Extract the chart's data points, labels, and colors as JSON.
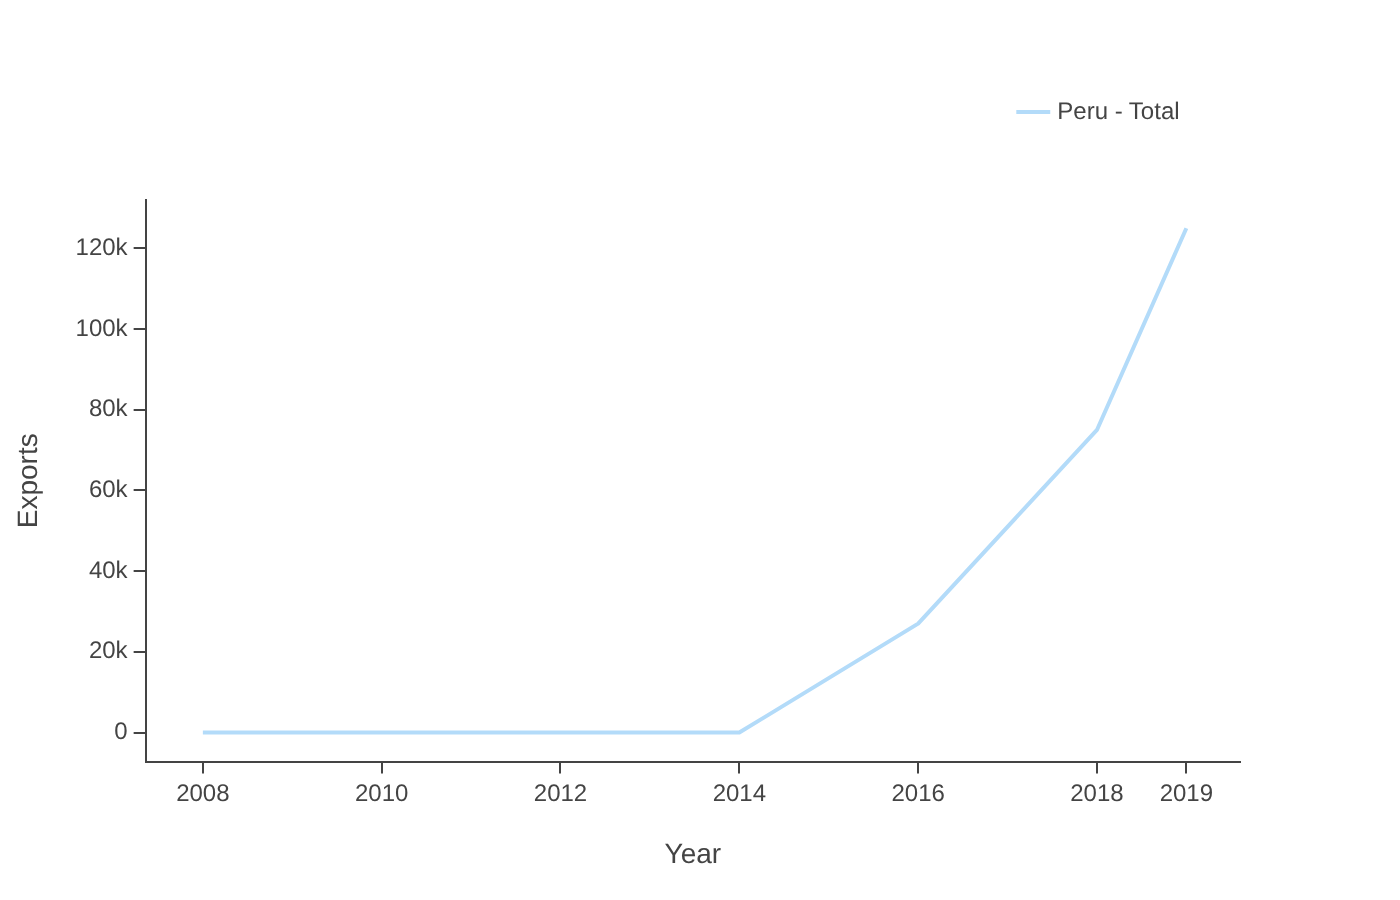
{
  "chart_data": {
    "type": "line",
    "xlabel": "Year",
    "ylabel": "Exports",
    "x": [
      2008,
      2010,
      2012,
      2014,
      2016,
      2018,
      2019
    ],
    "series": [
      {
        "name": "Peru - Total",
        "color": "#b3dbf9",
        "values": [
          0,
          0,
          0,
          0,
          27000,
          75000,
          125000
        ]
      }
    ],
    "xlim": [
      2007.36,
      2019.6
    ],
    "xticks": [
      2008,
      2010,
      2012,
      2014,
      2016,
      2018,
      2019
    ],
    "ylim": [
      -7200,
      132000
    ],
    "yticks": [
      {
        "value": 0,
        "label": "0"
      },
      {
        "value": 20000,
        "label": "20k"
      },
      {
        "value": 40000,
        "label": "40k"
      },
      {
        "value": 60000,
        "label": "60k"
      },
      {
        "value": 80000,
        "label": "80k"
      },
      {
        "value": 100000,
        "label": "100k"
      },
      {
        "value": 120000,
        "label": "120k"
      }
    ],
    "grid": false,
    "legend": "top right",
    "marker": "none",
    "line_style": "solid"
  }
}
